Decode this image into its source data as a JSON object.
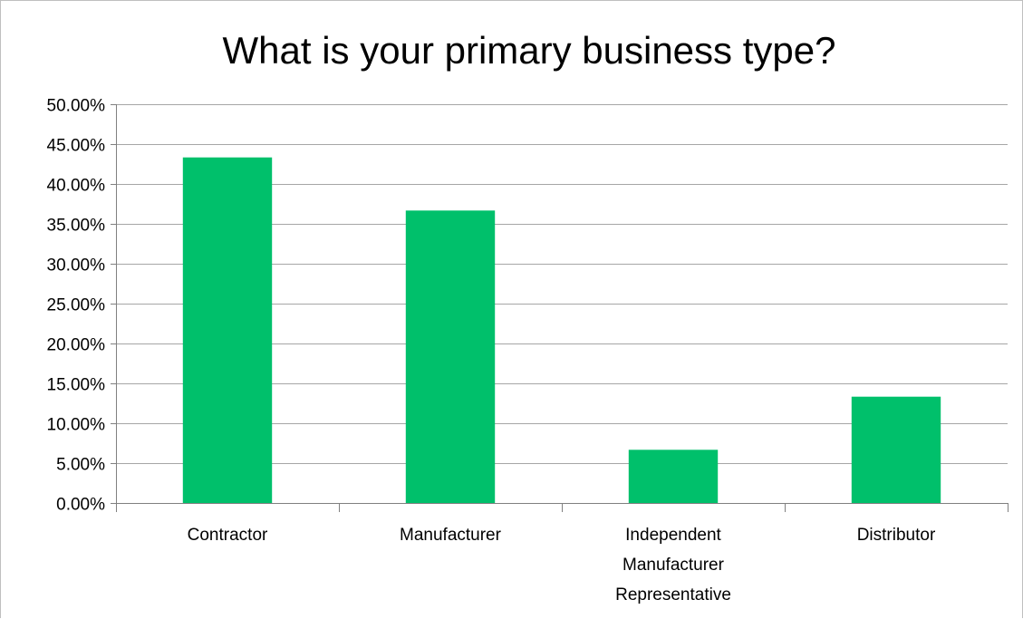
{
  "chart_data": {
    "type": "bar",
    "title": "What is your primary business type?",
    "categories": [
      [
        "Contractor"
      ],
      [
        "Manufacturer"
      ],
      [
        "Independent",
        "Manufacturer",
        "Representative"
      ],
      [
        "Distributor"
      ]
    ],
    "values": [
      0.4333,
      0.3667,
      0.0667,
      0.1333
    ],
    "ylim": [
      0,
      0.5
    ],
    "yticks": [
      0,
      0.05,
      0.1,
      0.15,
      0.2,
      0.25,
      0.3,
      0.35,
      0.4,
      0.45,
      0.5
    ],
    "ytick_labels": [
      "0.00%",
      "5.00%",
      "10.00%",
      "15.00%",
      "20.00%",
      "25.00%",
      "30.00%",
      "35.00%",
      "40.00%",
      "45.00%",
      "50.00%"
    ],
    "bar_color": "#00c06b",
    "grid": true,
    "gridline_color": "#a6a6a6",
    "legend": "none"
  }
}
